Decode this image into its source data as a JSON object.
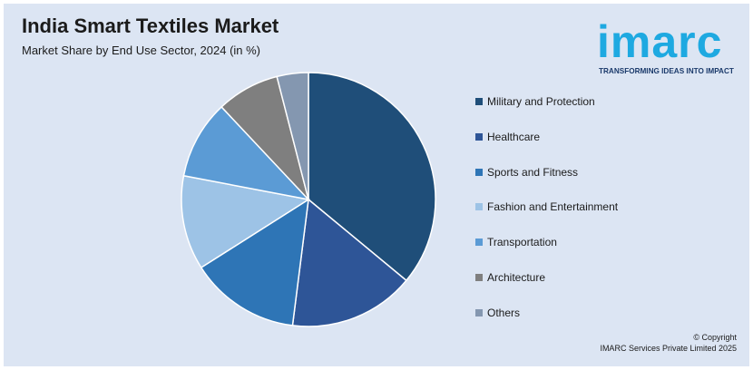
{
  "header": {
    "title": "India Smart Textiles Market",
    "subtitle": "Market Share by End Use Sector, 2024 (in %)"
  },
  "logo": {
    "word": "imarc",
    "tagline": "TRANSFORMING IDEAS INTO IMPACT"
  },
  "footer": {
    "copyright": "© Copyright",
    "company": "IMARC Services Private Limited 2025"
  },
  "chart_data": {
    "type": "pie",
    "title": "India Smart Textiles Market",
    "subtitle": "Market Share by End Use Sector, 2024 (in %)",
    "legend_position": "right",
    "categories": [
      "Military and Protection",
      "Healthcare",
      "Sports and Fitness",
      "Fashion and Entertainment",
      "Transportation",
      "Architecture",
      "Others"
    ],
    "values": [
      36,
      16,
      14,
      12,
      10,
      8,
      4
    ],
    "colors": [
      "#1f4e79",
      "#2e5597",
      "#2e75b6",
      "#9dc3e6",
      "#5b9bd5",
      "#7f7f7f",
      "#8497b0"
    ]
  }
}
